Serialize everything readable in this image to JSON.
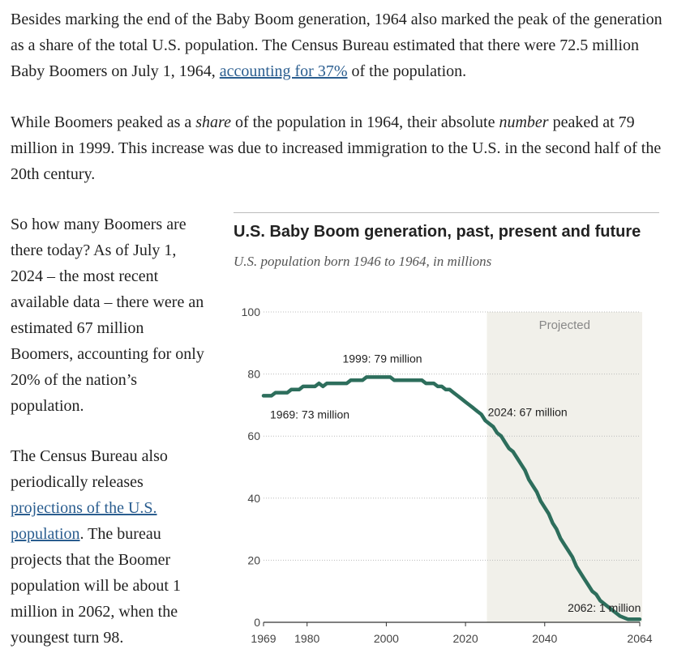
{
  "article": {
    "p1_text": "Besides marking the end of the Baby Boom generation, 1964 also marked the peak of the generation as a share of the total U.S. population. The Census Bureau estimated that there were 72.5 million Baby Boomers on July 1, 1964, ",
    "p1_link": "accounting for 37%",
    "p1_end": " of the population.",
    "p2_a": "While Boomers peaked as a ",
    "p2_em1": "share",
    "p2_b": " of the population in 1964, their absolute ",
    "p2_em2": "number",
    "p2_c": " peaked at 79 million in 1999. This increase was due to increased immigration to the U.S. in the second half of the 20th century.",
    "p3": "So how many Boomers are there today? As of July 1, 2024 – the most recent available data – there were an estimated 67 million Boomers, accounting for only 20% of the nation’s population.",
    "p4_a": "The Census Bureau also periodically releases ",
    "p4_link": "projections of the U.S. population",
    "p4_b": ". The bureau projects that the Boomer population will be about 1 million in 2062, when the youngest turn 98."
  },
  "colors": {
    "line": "#2d6e5c",
    "projected_band": "#f1f0ea",
    "grid": "#bbbbbb",
    "link": "#2a5d8f"
  },
  "chart_data": {
    "type": "line",
    "title": "U.S. Baby Boom generation, past, present and future",
    "subtitle": "U.S. population born 1946 to 1964, in millions",
    "xlabel": "",
    "ylabel": "",
    "xlim": [
      1969,
      2064
    ],
    "ylim": [
      0,
      100
    ],
    "y_ticks": [
      0,
      20,
      40,
      60,
      80,
      100
    ],
    "x_ticks": [
      1969,
      1980,
      2000,
      2020,
      2040,
      2064
    ],
    "grid": true,
    "projected_region": {
      "start": 2025,
      "end": 2064,
      "label": "Projected"
    },
    "series": [
      {
        "name": "Baby Boomers",
        "x": [
          1969,
          1970,
          1971,
          1972,
          1973,
          1974,
          1975,
          1976,
          1977,
          1978,
          1979,
          1980,
          1981,
          1982,
          1983,
          1984,
          1985,
          1986,
          1987,
          1988,
          1989,
          1990,
          1991,
          1992,
          1993,
          1994,
          1995,
          1996,
          1997,
          1998,
          1999,
          2000,
          2001,
          2002,
          2003,
          2004,
          2005,
          2006,
          2007,
          2008,
          2009,
          2010,
          2011,
          2012,
          2013,
          2014,
          2015,
          2016,
          2017,
          2018,
          2019,
          2020,
          2021,
          2022,
          2023,
          2024,
          2025,
          2026,
          2027,
          2028,
          2029,
          2030,
          2031,
          2032,
          2033,
          2034,
          2035,
          2036,
          2037,
          2038,
          2039,
          2040,
          2041,
          2042,
          2043,
          2044,
          2045,
          2046,
          2047,
          2048,
          2049,
          2050,
          2051,
          2052,
          2053,
          2054,
          2055,
          2056,
          2057,
          2058,
          2059,
          2060,
          2061,
          2062,
          2063,
          2064
        ],
        "values": [
          73,
          73,
          73,
          74,
          74,
          74,
          74,
          75,
          75,
          75,
          76,
          76,
          76,
          76,
          77,
          76,
          77,
          77,
          77,
          77,
          77,
          77,
          78,
          78,
          78,
          78,
          79,
          79,
          79,
          79,
          79,
          79,
          79,
          78,
          78,
          78,
          78,
          78,
          78,
          78,
          78,
          77,
          77,
          77,
          76,
          76,
          75,
          75,
          74,
          73,
          72,
          71,
          70,
          69,
          68,
          67,
          65,
          64,
          63,
          61,
          60,
          58,
          56,
          55,
          53,
          51,
          49,
          46,
          44,
          42,
          39,
          37,
          35,
          32,
          30,
          27,
          25,
          23,
          21,
          18,
          16,
          14,
          12,
          10,
          9,
          7,
          6,
          5,
          4,
          3,
          2,
          1.5,
          1,
          1,
          1,
          1
        ]
      }
    ],
    "annotations": [
      {
        "text": "1969: 73 million",
        "x": 1969,
        "y": 73
      },
      {
        "text": "1999: 79 million",
        "x": 1999,
        "y": 79
      },
      {
        "text": "2024: 67 million",
        "x": 2024,
        "y": 67
      },
      {
        "text": "2062: 1 million",
        "x": 2062,
        "y": 1
      }
    ]
  }
}
